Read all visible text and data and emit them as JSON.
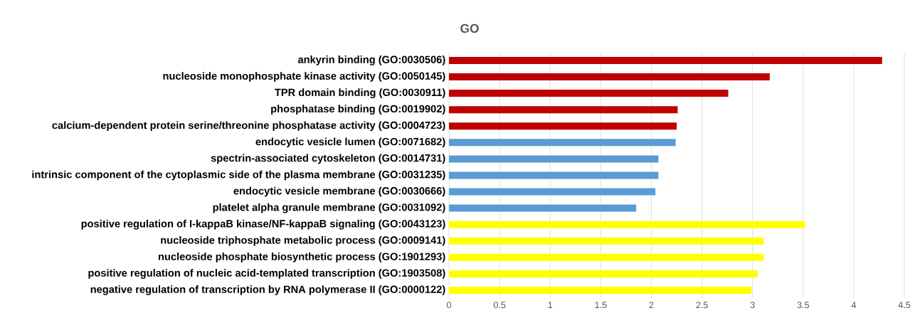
{
  "chart_data": {
    "type": "bar",
    "orientation": "horizontal",
    "title": "GO",
    "categories": [
      "ankyrin binding (GO:0030506)",
      "nucleoside monophosphate kinase activity (GO:0050145)",
      "TPR domain binding (GO:0030911)",
      "phosphatase binding (GO:0019902)",
      "calcium-dependent protein serine/threonine phosphatase activity (GO:0004723)",
      "endocytic vesicle lumen (GO:0071682)",
      "spectrin-associated cytoskeleton (GO:0014731)",
      "intrinsic component of the cytoplasmic side of the plasma membrane (GO:0031235)",
      "endocytic vesicle membrane (GO:0030666)",
      "platelet alpha granule membrane (GO:0031092)",
      "positive regulation of I-kappaB kinase/NF-kappaB signaling (GO:0043123)",
      "nucleoside triphosphate metabolic process (GO:0009141)",
      "nucleoside phosphate biosynthetic process (GO:1901293)",
      "positive regulation of nucleic acid-templated transcription (GO:1903508)",
      "negative regulation of transcription by RNA polymerase II (GO:0000122)"
    ],
    "values": [
      4.28,
      3.17,
      2.76,
      2.26,
      2.25,
      2.24,
      2.07,
      2.07,
      2.04,
      1.85,
      3.52,
      3.11,
      3.11,
      3.05,
      2.99
    ],
    "colors": [
      "#c00000",
      "#c00000",
      "#c00000",
      "#c00000",
      "#c00000",
      "#5b9bd5",
      "#5b9bd5",
      "#5b9bd5",
      "#5b9bd5",
      "#5b9bd5",
      "#ffff00",
      "#ffff00",
      "#ffff00",
      "#ffff00",
      "#ffff00"
    ],
    "xlim": [
      0,
      4.5
    ],
    "xticks": [
      0,
      0.5,
      1,
      1.5,
      2,
      2.5,
      3,
      3.5,
      4,
      4.5
    ],
    "grid": "x"
  }
}
